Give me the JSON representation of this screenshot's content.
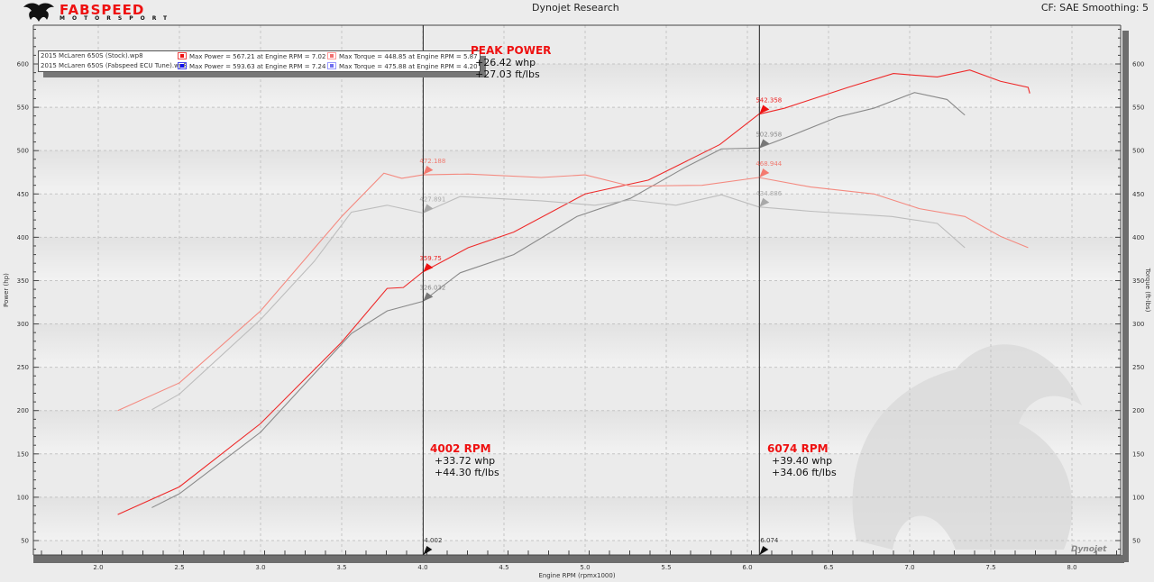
{
  "header": {
    "brand": "FABSPEED",
    "brand_sub": "MOTORSPORT",
    "title": "Dynojet Research",
    "settings": "CF: SAE Smoothing: 5",
    "watermark": "Dynojet"
  },
  "legend": [
    {
      "file": "2015 McLaren 650S (Stock).wp8",
      "power": "Max Power = 567.21 at Engine RPM = 7.02",
      "torque": "Max Torque = 448.85 at Engine RPM = 5.87",
      "power_color": "#ee1111",
      "torque_color": "#f07070",
      "frame": "#e44"
    },
    {
      "file": "2015 McLaren 650S (Fabspeed ECU Tune).wp8",
      "power": "Max Power = 593.63 at Engine RPM = 7.24",
      "torque": "Max Torque = 475.88 at Engine RPM = 4.20",
      "power_color": "#1111ee",
      "torque_color": "#7070f0",
      "frame": "#44e"
    }
  ],
  "annotations": {
    "peak": {
      "title": "PEAK POWER",
      "l1": "+26.42 whp",
      "l2": "+27.03 ft/lbs"
    },
    "a4002": {
      "title": "4002 RPM",
      "l1": "+33.72 whp",
      "l2": "+44.30 ft/lbs"
    },
    "a6074": {
      "title": "6074 RPM",
      "l1": "+39.40 whp",
      "l2": "+34.06 ft/lbs"
    }
  },
  "chart_data": {
    "type": "line",
    "xlabel": "Engine RPM (rpmx1000)",
    "ylabel": "Power (hp)",
    "y2label": "Torque (ft-lbs)",
    "xlim": [
      1.6,
      8.3
    ],
    "ylim": [
      33,
      645
    ],
    "xticks": [
      2.0,
      2.5,
      3.0,
      3.5,
      4.0,
      4.5,
      5.0,
      5.5,
      6.0,
      6.5,
      7.0,
      7.5,
      8.0
    ],
    "yticks": [
      50,
      100,
      150,
      200,
      250,
      300,
      350,
      400,
      450,
      500,
      550,
      600
    ],
    "grid": true,
    "colors": {
      "tuned_power": "#ee2a2a",
      "stock_power": "#8a8a8a",
      "tuned_torque": "#f48a80",
      "stock_torque": "#bdbdbd"
    },
    "series": [
      {
        "key": "tuned_power",
        "points": [
          [
            2.12,
            80
          ],
          [
            2.5,
            112
          ],
          [
            3.0,
            185
          ],
          [
            3.5,
            279
          ],
          [
            3.78,
            341
          ],
          [
            3.88,
            342
          ],
          [
            4.0,
            360
          ],
          [
            4.28,
            388
          ],
          [
            4.56,
            406
          ],
          [
            5.0,
            450
          ],
          [
            5.39,
            466
          ],
          [
            5.83,
            507
          ],
          [
            6.07,
            542
          ],
          [
            6.23,
            549
          ],
          [
            6.62,
            573
          ],
          [
            6.9,
            589
          ],
          [
            7.17,
            585
          ],
          [
            7.37,
            593
          ],
          [
            7.56,
            580
          ],
          [
            7.73,
            573
          ],
          [
            7.74,
            566
          ]
        ]
      },
      {
        "key": "stock_power",
        "points": [
          [
            2.33,
            88
          ],
          [
            2.5,
            104
          ],
          [
            3.0,
            175
          ],
          [
            3.56,
            289
          ],
          [
            3.78,
            315
          ],
          [
            4.0,
            326
          ],
          [
            4.23,
            359
          ],
          [
            4.56,
            380
          ],
          [
            4.95,
            424
          ],
          [
            5.28,
            445
          ],
          [
            5.62,
            481
          ],
          [
            5.84,
            502
          ],
          [
            6.07,
            503
          ],
          [
            6.28,
            518
          ],
          [
            6.56,
            539
          ],
          [
            6.78,
            549
          ],
          [
            7.03,
            567
          ],
          [
            7.23,
            559
          ],
          [
            7.34,
            541
          ]
        ]
      },
      {
        "key": "tuned_torque",
        "points": [
          [
            2.12,
            200
          ],
          [
            2.5,
            232
          ],
          [
            3.0,
            315
          ],
          [
            3.5,
            424
          ],
          [
            3.76,
            474
          ],
          [
            3.87,
            468
          ],
          [
            4.0,
            472
          ],
          [
            4.28,
            473
          ],
          [
            4.73,
            469
          ],
          [
            5.0,
            472
          ],
          [
            5.28,
            459
          ],
          [
            5.72,
            460
          ],
          [
            6.07,
            469
          ],
          [
            6.39,
            458
          ],
          [
            6.78,
            450
          ],
          [
            7.06,
            433
          ],
          [
            7.34,
            424
          ],
          [
            7.56,
            401
          ],
          [
            7.73,
            388
          ]
        ]
      },
      {
        "key": "stock_torque",
        "points": [
          [
            2.33,
            201
          ],
          [
            2.5,
            219
          ],
          [
            3.0,
            305
          ],
          [
            3.33,
            372
          ],
          [
            3.56,
            429
          ],
          [
            3.78,
            437
          ],
          [
            4.0,
            428
          ],
          [
            4.23,
            447
          ],
          [
            4.73,
            442
          ],
          [
            5.06,
            437
          ],
          [
            5.28,
            443
          ],
          [
            5.56,
            437
          ],
          [
            5.84,
            449
          ],
          [
            6.07,
            435
          ],
          [
            6.39,
            430
          ],
          [
            6.89,
            424
          ],
          [
            7.17,
            416
          ],
          [
            7.34,
            388
          ]
        ]
      }
    ],
    "cursors": [
      {
        "rpm": 4.002,
        "label": "4.002",
        "markers": [
          {
            "value": 472.188,
            "label": "472.188",
            "series": "tuned_torque"
          },
          {
            "value": 427.891,
            "label": "427.891",
            "series": "stock_torque"
          },
          {
            "value": 359.75,
            "label": "359.75",
            "series": "tuned_power"
          },
          {
            "value": 326.032,
            "label": "326.032",
            "series": "stock_power"
          }
        ]
      },
      {
        "rpm": 6.074,
        "label": "6.074",
        "markers": [
          {
            "value": 542.358,
            "label": "542.358",
            "series": "tuned_power"
          },
          {
            "value": 502.958,
            "label": "502.958",
            "series": "stock_power"
          },
          {
            "value": 468.944,
            "label": "468.944",
            "series": "tuned_torque"
          },
          {
            "value": 434.886,
            "label": "434.886",
            "series": "stock_torque"
          }
        ]
      }
    ]
  }
}
